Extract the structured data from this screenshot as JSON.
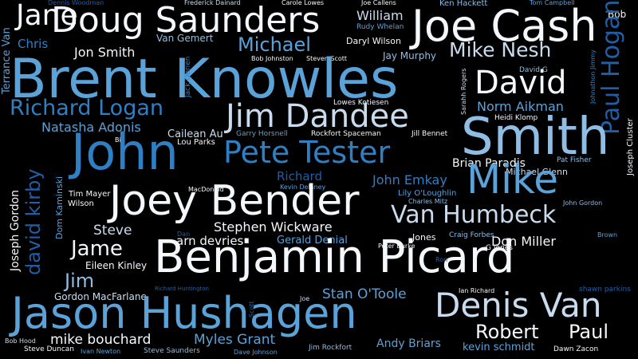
{
  "words": [
    {
      "t": "Dennis Woodman"
    },
    {
      "t": "Frederick Dainard"
    },
    {
      "t": "Carole Lowes"
    },
    {
      "t": "Joe Callens"
    },
    {
      "t": "Ken Hackett"
    },
    {
      "t": "Tom Campbell"
    },
    {
      "t": "Jane"
    },
    {
      "t": "Doug Saunders"
    },
    {
      "t": "Joe Cash"
    },
    {
      "t": "Bob"
    },
    {
      "t": "William"
    },
    {
      "t": "Rudy Whelan"
    },
    {
      "t": "Terrance Van"
    },
    {
      "t": "Chris"
    },
    {
      "t": "Van Gemert"
    },
    {
      "t": "Daryl Wilson"
    },
    {
      "t": "Jon Smith"
    },
    {
      "t": "Michael"
    },
    {
      "t": "Mike Nesh"
    },
    {
      "t": "Jay Murphy"
    },
    {
      "t": "Bob Johnston"
    },
    {
      "t": "Steven Scott"
    },
    {
      "t": "Brent Knowles"
    },
    {
      "t": "David G"
    },
    {
      "t": "Jack Obrien"
    },
    {
      "t": "Sarahh Rogers"
    },
    {
      "t": "Johnathon Jimmy"
    },
    {
      "t": "Paul Hogan"
    },
    {
      "t": "David"
    },
    {
      "t": "Richard Logan"
    },
    {
      "t": "Lowes Kotiesen"
    },
    {
      "t": "Norm Aikman"
    },
    {
      "t": "Jim Dandee"
    },
    {
      "t": "Heidi Klomp"
    },
    {
      "t": "Natasha Adonis"
    },
    {
      "t": "Cailean Au"
    },
    {
      "t": "Lou Parks"
    },
    {
      "t": "Smith"
    },
    {
      "t": "Garry Horsnell"
    },
    {
      "t": "Rockfort Spaceman"
    },
    {
      "t": "Jill Bennet"
    },
    {
      "t": "Joseph Cluster"
    },
    {
      "t": "Bill"
    },
    {
      "t": "John"
    },
    {
      "t": "Pete Tester"
    },
    {
      "t": "Brian Paradis"
    },
    {
      "t": "Pat Fisher"
    },
    {
      "t": "Joseph Gordon"
    },
    {
      "t": "Michael Glenn"
    },
    {
      "t": "david kirby"
    },
    {
      "t": "Richard"
    },
    {
      "t": "Kevin Delaney"
    },
    {
      "t": "John Emkay"
    },
    {
      "t": "Mike"
    },
    {
      "t": "Tim Mayer"
    },
    {
      "t": "MacDonald"
    },
    {
      "t": "Lily O'Loughlin"
    },
    {
      "t": "Charles Mitz"
    },
    {
      "t": "Dom Kaminski"
    },
    {
      "t": "Wilson"
    },
    {
      "t": "Joey Bender"
    },
    {
      "t": "John Gordon"
    },
    {
      "t": "Van Humbeck"
    },
    {
      "t": "Steve"
    },
    {
      "t": "Stephen Wickware"
    },
    {
      "t": "Dan"
    },
    {
      "t": "arn devries"
    },
    {
      "t": "Gerald Denial"
    },
    {
      "t": "Jones"
    },
    {
      "t": "Craig Forbes"
    },
    {
      "t": "Brown"
    },
    {
      "t": "Jame"
    },
    {
      "t": "Benjamin Picard"
    },
    {
      "t": "Don Miller"
    },
    {
      "t": "Peter Burke"
    },
    {
      "t": "G Jones"
    },
    {
      "t": "Eileen Kinley"
    },
    {
      "t": "Ron"
    },
    {
      "t": "Jim"
    },
    {
      "t": "Richard Huntington"
    },
    {
      "t": "Ian Richard"
    },
    {
      "t": "shawn parkins"
    },
    {
      "t": "Gordon MacFarlane"
    },
    {
      "t": "Stan O'Toole"
    },
    {
      "t": "Joe"
    },
    {
      "t": "Scott"
    },
    {
      "t": "Jason Hushagen"
    },
    {
      "t": "Denis Van"
    },
    {
      "t": "Robert"
    },
    {
      "t": "Paul"
    },
    {
      "t": "Bob Hood"
    },
    {
      "t": "mike bouchard"
    },
    {
      "t": "Myles Grant"
    },
    {
      "t": "Andy Briars"
    },
    {
      "t": "kevin schmidt"
    },
    {
      "t": "Steve Duncan"
    },
    {
      "t": "Ivan Newton"
    },
    {
      "t": "Steve Saunders"
    },
    {
      "t": "Dave Johnson"
    },
    {
      "t": "Jim Rockfort"
    },
    {
      "t": "Dawn Zacon"
    }
  ]
}
